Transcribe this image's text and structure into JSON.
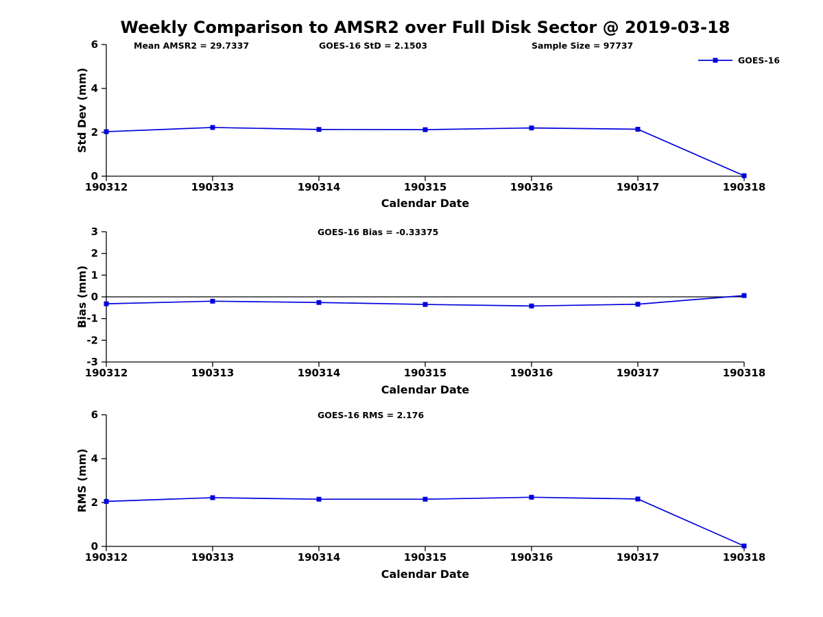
{
  "title": "Weekly Comparison to AMSR2 over Full Disk Sector @ 2019-03-18",
  "colors": {
    "series": "#0000dd",
    "axis": "#000000",
    "zero_line": "#000000",
    "background": "#ffffff"
  },
  "chart_data": [
    {
      "type": "line",
      "name": "std-dev",
      "categories": [
        "190312",
        "190313",
        "190314",
        "190315",
        "190316",
        "190317",
        "190318"
      ],
      "series": [
        {
          "name": "GOES-16",
          "values": [
            2.03,
            2.22,
            2.13,
            2.12,
            2.2,
            2.14,
            0.02
          ]
        }
      ],
      "annotations": [
        {
          "text": "Mean AMSR2 = 29.7337",
          "x": 195
        },
        {
          "text": "GOES-16 StD = 2.1503",
          "x": 465
        },
        {
          "text": "Sample Size = 97737",
          "x": 775
        }
      ],
      "xlabel": "Calendar Date",
      "ylabel": "Std Dev (mm)",
      "ylim": [
        0,
        6
      ],
      "yticks": [
        0,
        2,
        4,
        6
      ],
      "grid": false,
      "zero_line": false,
      "legend": {
        "label": "GOES-16",
        "position": "top-right"
      }
    },
    {
      "type": "line",
      "name": "bias",
      "categories": [
        "190312",
        "190313",
        "190314",
        "190315",
        "190316",
        "190317",
        "190318"
      ],
      "series": [
        {
          "name": "GOES-16",
          "values": [
            -0.32,
            -0.2,
            -0.26,
            -0.35,
            -0.42,
            -0.34,
            0.06
          ]
        }
      ],
      "annotations": [
        {
          "text": "GOES-16 Bias = -0.33375",
          "x": 463
        }
      ],
      "xlabel": "Calendar Date",
      "ylabel": "Bias (mm)",
      "ylim": [
        -3,
        3
      ],
      "yticks": [
        -3,
        -2,
        -1,
        0,
        1,
        2,
        3
      ],
      "grid": false,
      "zero_line": true,
      "legend": null
    },
    {
      "type": "line",
      "name": "rms",
      "categories": [
        "190312",
        "190313",
        "190314",
        "190315",
        "190316",
        "190317",
        "190318"
      ],
      "series": [
        {
          "name": "GOES-16",
          "values": [
            2.05,
            2.22,
            2.15,
            2.15,
            2.24,
            2.16,
            0.02
          ]
        }
      ],
      "annotations": [
        {
          "text": "GOES-16 RMS = 2.176",
          "x": 463
        }
      ],
      "xlabel": "Calendar Date",
      "ylabel": "RMS (mm)",
      "ylim": [
        0,
        6
      ],
      "yticks": [
        0,
        2,
        4,
        6
      ],
      "grid": false,
      "zero_line": false,
      "legend": null
    }
  ]
}
